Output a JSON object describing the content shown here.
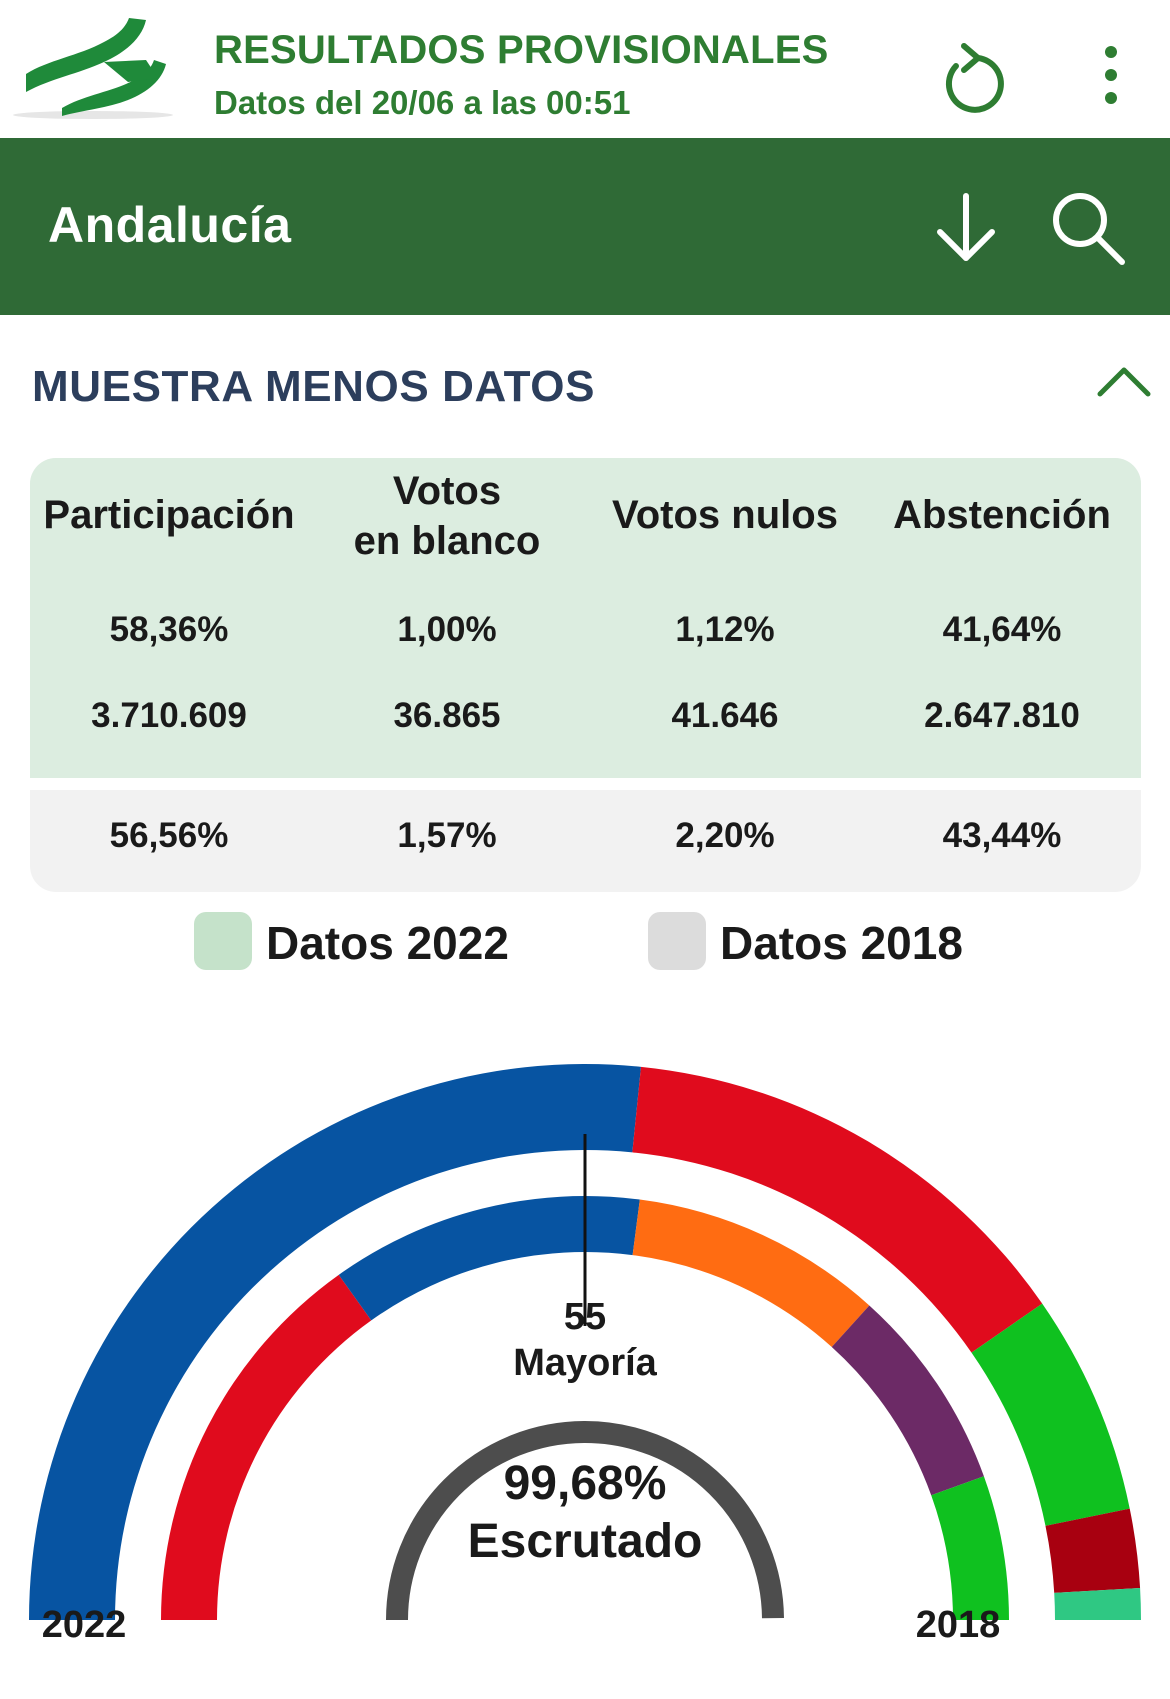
{
  "header": {
    "title": "RESULTADOS PROVISIONALES",
    "subtitle": "Datos del 20/06 a las 00:51"
  },
  "region": {
    "name": "Andalucía"
  },
  "toggle": {
    "label": "MUESTRA MENOS DATOS"
  },
  "stats": {
    "columns": [
      {
        "header": [
          "Participación",
          ""
        ],
        "pct_2022": "58,36%",
        "count_2022": "3.710.609",
        "pct_2018": "56,56%"
      },
      {
        "header": [
          "Votos",
          "en blanco"
        ],
        "pct_2022": "1,00%",
        "count_2022": "36.865",
        "pct_2018": "1,57%"
      },
      {
        "header": [
          "Votos nulos",
          ""
        ],
        "pct_2022": "1,12%",
        "count_2022": "41.646",
        "pct_2018": "2,20%"
      },
      {
        "header": [
          "Abstención",
          ""
        ],
        "pct_2022": "41,64%",
        "count_2022": "2.647.810",
        "pct_2018": "43,44%"
      }
    ]
  },
  "legend": [
    {
      "label": "Datos 2022",
      "color": "#c5e2ca"
    },
    {
      "label": "Datos 2018",
      "color": "#dcdcdc"
    }
  ],
  "chart_data": {
    "type": "hemicycle",
    "total_seats": 109,
    "majority": {
      "value": "55",
      "label": "Mayoría"
    },
    "scrutiny": {
      "value": "99,68%",
      "label": "Escrutado"
    },
    "scrutiny_fraction": 0.9968,
    "rings": [
      {
        "label": "2022",
        "segments": [
          {
            "seats": 58,
            "color": "#0754a2"
          },
          {
            "seats": 30,
            "color": "#e00b1d"
          },
          {
            "seats": 14,
            "color": "#0fc11f"
          },
          {
            "seats": 5,
            "color": "#a80010"
          },
          {
            "seats": 2,
            "color": "#2fc883"
          }
        ]
      },
      {
        "label": "2018",
        "segments": [
          {
            "seats": 33,
            "color": "#e00b1d"
          },
          {
            "seats": 26,
            "color": "#0754a2"
          },
          {
            "seats": 21,
            "color": "#ff6c12"
          },
          {
            "seats": 17,
            "color": "#6c2a66"
          },
          {
            "seats": 12,
            "color": "#0fc11f"
          }
        ]
      }
    ]
  }
}
